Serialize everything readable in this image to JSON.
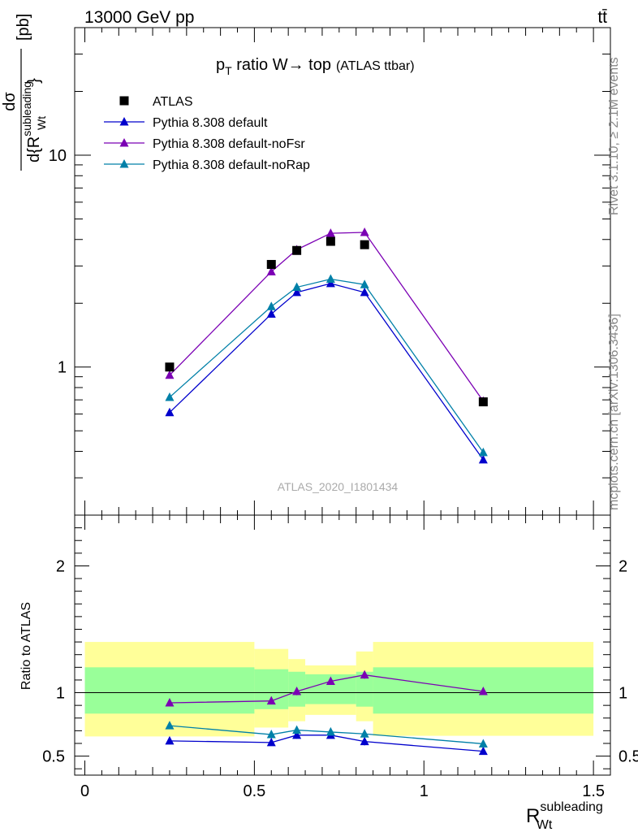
{
  "header": {
    "energy_label": "13000 GeV pp",
    "process_label": "tt̄"
  },
  "side_labels": {
    "rivet": "Rivet 3.1.10, ≥ 2.1M events",
    "source": "mcplots.cern.ch [arXiv:1306.3436]"
  },
  "title": {
    "main": "p_T ratio W→ top",
    "sub": "(ATLAS ttbar)"
  },
  "watermark": "ATLAS_2020_I1801434",
  "chart_data": [
    {
      "type": "scatter",
      "panel": "main",
      "yscale": "log",
      "ylabel": "dσ / d{R_Wt^subleading} [pb]",
      "ytick_labels": [
        "1",
        "10"
      ],
      "x": [
        0.25,
        0.55,
        0.625,
        0.725,
        0.825,
        1.175
      ],
      "xlim": [
        -0.03,
        1.55
      ],
      "ylim": [
        0.2,
        40
      ],
      "legend_position": "top-left",
      "series": [
        {
          "name": "ATLAS",
          "marker": "square",
          "color": "#000000",
          "values": [
            1.0,
            3.05,
            3.55,
            3.92,
            3.78,
            0.685
          ]
        },
        {
          "name": "Pythia 8.308 default",
          "marker": "triangle",
          "color": "#0000cc",
          "values": [
            0.61,
            1.78,
            2.25,
            2.48,
            2.25,
            0.365
          ]
        },
        {
          "name": "Pythia 8.308 default-noFsr",
          "marker": "triangle",
          "color": "#7b00b4",
          "values": [
            0.915,
            2.82,
            3.58,
            4.28,
            4.32,
            0.69
          ]
        },
        {
          "name": "Pythia 8.308 default-noRap",
          "marker": "triangle",
          "color": "#0080a8",
          "values": [
            0.72,
            1.93,
            2.38,
            2.6,
            2.45,
            0.395
          ]
        }
      ]
    },
    {
      "type": "line",
      "panel": "ratio",
      "ylabel": "Ratio to ATLAS",
      "xlabel": "R_Wt^subleading",
      "xtick_labels": [
        "0",
        "0.5",
        "1",
        "1.5"
      ],
      "ytick_labels": [
        "0.5",
        "1",
        "2"
      ],
      "x": [
        0.25,
        0.55,
        0.625,
        0.725,
        0.825,
        1.175
      ],
      "xlim": [
        -0.03,
        1.55
      ],
      "ylim": [
        0.35,
        2.4
      ],
      "series": [
        {
          "name": "Pythia 8.308 default",
          "color": "#0000cc",
          "values": [
            0.62,
            0.607,
            0.665,
            0.665,
            0.615,
            0.538
          ],
          "errors": [
            0.018,
            0.022,
            0.028,
            0.02,
            0.03,
            0.02
          ]
        },
        {
          "name": "Pythia 8.308 default-noFsr",
          "color": "#7b00b4",
          "values": [
            0.92,
            0.935,
            1.01,
            1.09,
            1.14,
            1.01
          ],
          "errors": [
            0.012,
            0.015,
            0.03,
            0.015,
            0.03,
            0.012
          ]
        },
        {
          "name": "Pythia 8.308 default-noRap",
          "color": "#0080a8",
          "values": [
            0.74,
            0.67,
            0.705,
            0.69,
            0.675,
            0.597
          ],
          "errors": [
            0.01,
            0.02,
            0.03,
            0.015,
            0.03,
            0.015
          ]
        }
      ],
      "bands": {
        "edges": [
          0,
          0.5,
          0.6,
          0.65,
          0.8,
          0.85,
          1.5
        ],
        "stat_color": "#99ff99",
        "syst_color": "#ffff99",
        "inner_low": [
          0.835,
          0.87,
          0.89,
          0.91,
          0.89,
          0.835
        ],
        "inner_high": [
          1.2,
          1.185,
          1.165,
          1.145,
          1.165,
          1.2
        ],
        "outer_low": [
          0.655,
          0.725,
          0.775,
          0.825,
          0.775,
          0.66
        ],
        "outer_high": [
          1.4,
          1.345,
          1.265,
          1.215,
          1.325,
          1.4
        ]
      }
    }
  ]
}
